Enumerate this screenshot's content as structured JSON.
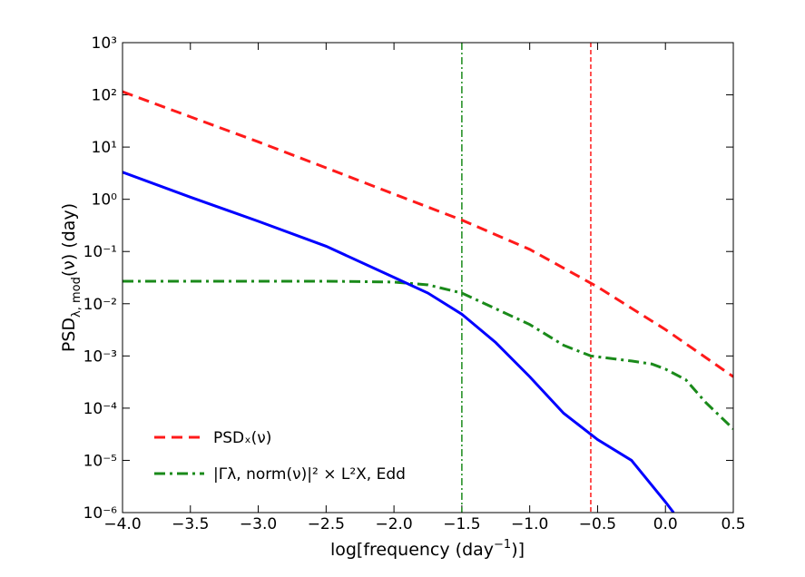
{
  "chart_data": {
    "type": "line",
    "xlabel": {
      "text": "log[frequency (day",
      "sup": "−1",
      "end": ")]"
    },
    "ylabel": {
      "text": "PSD",
      "sub": "λ, mod",
      "end": "(ν) (day)"
    },
    "xlim": [
      -4,
      0.5
    ],
    "xticks": [
      {
        "value": -4,
        "label": "−4.0"
      },
      {
        "value": -3.5,
        "label": "−3.5"
      },
      {
        "value": -3,
        "label": "−3.0"
      },
      {
        "value": -2.5,
        "label": "−2.5"
      },
      {
        "value": -2,
        "label": "−2.0"
      },
      {
        "value": -1.5,
        "label": "−1.5"
      },
      {
        "value": -1,
        "label": "−1.0"
      },
      {
        "value": -0.5,
        "label": "−0.5"
      },
      {
        "value": 0,
        "label": "0.0"
      },
      {
        "value": 0.5,
        "label": "0.5"
      }
    ],
    "ylim": [
      1e-06,
      1000
    ],
    "yscale": "log",
    "yticks": [
      {
        "value": 1e-06,
        "label": "10⁻⁶"
      },
      {
        "value": 1e-05,
        "label": "10⁻⁵"
      },
      {
        "value": 0.0001,
        "label": "10⁻⁴"
      },
      {
        "value": 0.001,
        "label": "10⁻³"
      },
      {
        "value": 0.01,
        "label": "10⁻²"
      },
      {
        "value": 0.1,
        "label": "10⁻¹"
      },
      {
        "value": 1,
        "label": "10⁰"
      },
      {
        "value": 10,
        "label": "10¹"
      },
      {
        "value": 100,
        "label": "10²"
      },
      {
        "value": 1000,
        "label": "10³"
      }
    ],
    "legend": "lower left",
    "series": [
      {
        "name": "PSDₓ(ν)",
        "color": "#ff1a1a",
        "style": "dashed",
        "x": [
          -4,
          -3.5,
          -3,
          -2.5,
          -2,
          -1.5,
          -1,
          -0.5,
          0,
          0.5
        ],
        "values": [
          115,
          38,
          12.6,
          4.0,
          1.26,
          0.4,
          0.11,
          0.021,
          0.0032,
          0.0004
        ]
      },
      {
        "name": "|Γλ, norm(ν)|² × L²X, Edd",
        "color": "#1a8a1a",
        "style": "dashdot",
        "x": [
          -4,
          -3.5,
          -3,
          -2.5,
          -2,
          -1.75,
          -1.5,
          -1.25,
          -1,
          -0.75,
          -0.55,
          -0.25,
          -0.1,
          0,
          0.15,
          0.3,
          0.5
        ],
        "values": [
          0.027,
          0.027,
          0.027,
          0.027,
          0.026,
          0.023,
          0.016,
          0.008,
          0.004,
          0.0016,
          0.001,
          0.0008,
          0.0007,
          0.00056,
          0.00035,
          0.000126,
          4e-05
        ]
      },
      {
        "color": "#0000ff",
        "style": "solid",
        "x": [
          -4,
          -3.5,
          -3,
          -2.5,
          -2,
          -1.75,
          -1.5,
          -1.25,
          -1,
          -0.75,
          -0.5,
          -0.25,
          0,
          0.06
        ],
        "values": [
          3.3,
          1.1,
          0.38,
          0.126,
          0.032,
          0.016,
          0.0063,
          0.0018,
          0.0004,
          8e-05,
          2.5e-05,
          1e-05,
          1.6e-06,
          1e-06
        ]
      }
    ],
    "vlines": [
      {
        "x": -1.5,
        "color": "#1a8a1a",
        "style": "dashdot"
      },
      {
        "x": -0.55,
        "color": "#ff1a1a",
        "style": "dashed"
      }
    ]
  }
}
